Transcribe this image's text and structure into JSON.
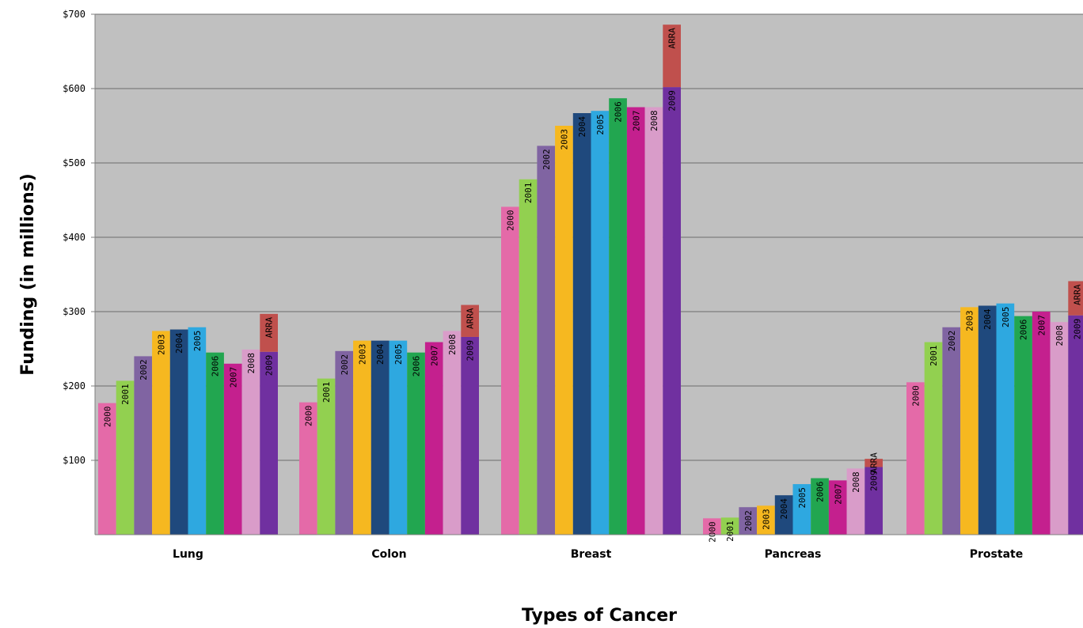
{
  "chart_data": {
    "type": "bar",
    "title": "",
    "xlabel": "Types of Cancer",
    "ylabel": "Funding (in millions)",
    "ylim": [
      0,
      700
    ],
    "yticks": [
      100,
      200,
      300,
      400,
      500,
      600,
      700
    ],
    "ytick_labels": [
      "$100",
      "$200",
      "$300",
      "$400",
      "$500",
      "$600",
      "$700"
    ],
    "grid": true,
    "background": "#c0c0c0",
    "categories": [
      "Lung",
      "Colon",
      "Breast",
      "Pancreas",
      "Prostate"
    ],
    "series": [
      {
        "name": "2000",
        "color": "#e46aa8",
        "values": [
          177,
          178,
          441,
          22,
          205
        ]
      },
      {
        "name": "2001",
        "color": "#92d050",
        "values": [
          207,
          210,
          478,
          23,
          259
        ]
      },
      {
        "name": "2002",
        "color": "#8064a2",
        "values": [
          240,
          247,
          523,
          37,
          279
        ]
      },
      {
        "name": "2003",
        "color": "#f6b820",
        "values": [
          274,
          261,
          550,
          39,
          306
        ]
      },
      {
        "name": "2004",
        "color": "#1f497d",
        "values": [
          276,
          261,
          567,
          53,
          308
        ]
      },
      {
        "name": "2005",
        "color": "#2ea8e0",
        "values": [
          279,
          261,
          570,
          68,
          311
        ]
      },
      {
        "name": "2006",
        "color": "#22a650",
        "values": [
          245,
          245,
          587,
          76,
          294
        ]
      },
      {
        "name": "2007",
        "color": "#c4208e",
        "values": [
          230,
          259,
          575,
          73,
          300
        ]
      },
      {
        "name": "2008",
        "color": "#d99cc9",
        "values": [
          249,
          274,
          575,
          89,
          286
        ]
      },
      {
        "name": "2009",
        "color": "#7030a0",
        "values": [
          246,
          266,
          602,
          91,
          295
        ]
      }
    ],
    "arra": {
      "name": "ARRA",
      "color": "#c0504d",
      "values": [
        51,
        43,
        84,
        11,
        46
      ]
    }
  }
}
